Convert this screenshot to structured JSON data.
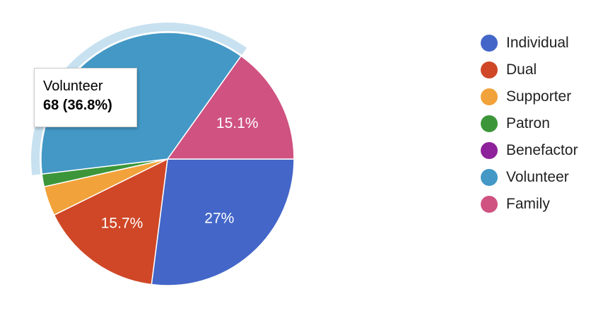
{
  "chart_data": {
    "type": "pie",
    "title": "",
    "legend_position": "right",
    "slices": [
      {
        "name": "Individual",
        "value": 50,
        "percent_label": "27%",
        "color": "#4366c8"
      },
      {
        "name": "Dual",
        "value": 29,
        "percent_label": "15.7%",
        "color": "#cf4727"
      },
      {
        "name": "Supporter",
        "value": 7,
        "percent_label": "",
        "color": "#f2a23a"
      },
      {
        "name": "Patron",
        "value": 3,
        "percent_label": "",
        "color": "#3c9639"
      },
      {
        "name": "Benefactor",
        "value": 0,
        "percent_label": "",
        "color": "#8e229a"
      },
      {
        "name": "Volunteer",
        "value": 68,
        "percent_label": "%",
        "color": "#4398c6"
      },
      {
        "name": "Family",
        "value": 28,
        "percent_label": "15.1%",
        "color": "#cf5280"
      }
    ],
    "highlighted": "Volunteer",
    "highlight_color": "#c7e1f0"
  },
  "tooltip": {
    "name": "Volunteer",
    "value": "68 (36.8%)"
  }
}
